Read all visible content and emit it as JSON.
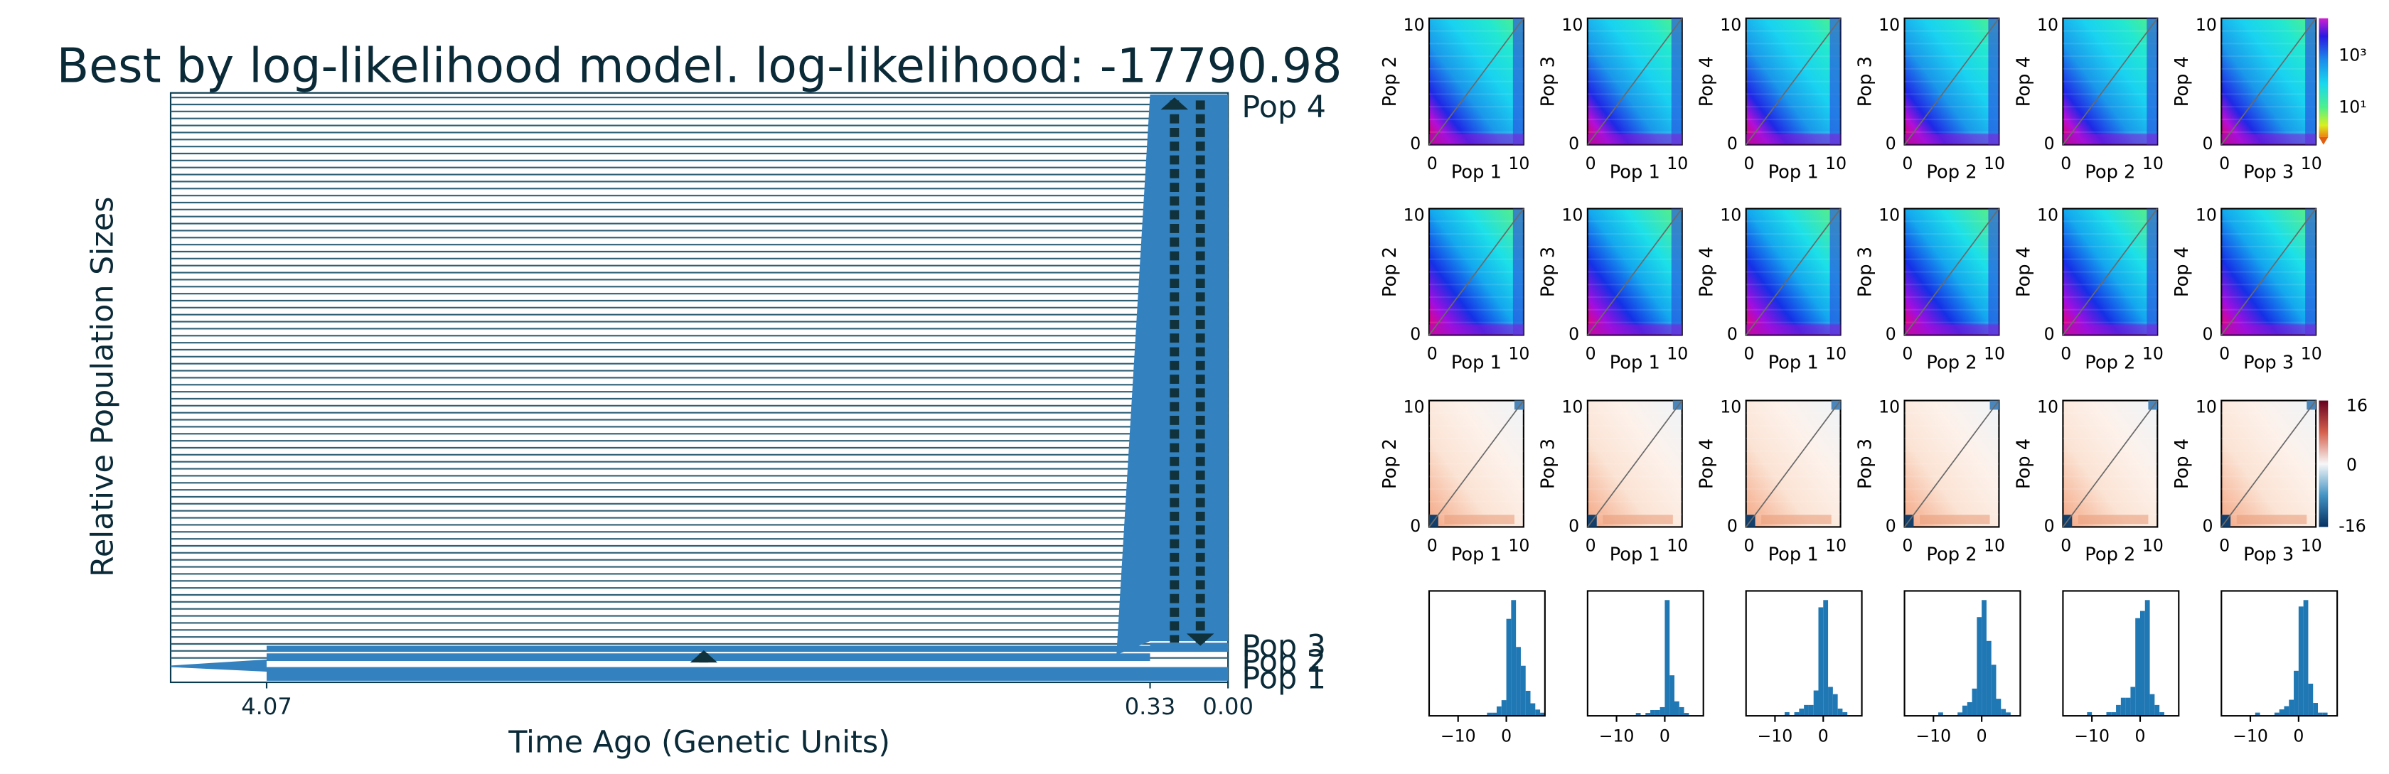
{
  "chart_data": [
    {
      "type": "area",
      "kind": "demographic-model",
      "title": "Best by log-likelihood model. log-likelihood: -17790.98",
      "xlabel": "Time Ago (Genetic Units)",
      "ylabel": "Relative Population Sizes",
      "x_ticks": [
        "4.07",
        "0.33",
        "0.00"
      ],
      "events": [
        4.07,
        0.33,
        0.0
      ],
      "populations": [
        "Pop 1",
        "Pop 2",
        "Pop 3",
        "Pop 4"
      ],
      "migrations": [
        {
          "from": "Pop 1",
          "to": "Pop 2",
          "time": [
            4.07,
            0.33
          ]
        },
        {
          "from": "Pop 3",
          "to": "Pop 4",
          "time": [
            0.33,
            0.0
          ]
        },
        {
          "from": "Pop 4",
          "to": "Pop 3",
          "time": [
            0.33,
            0.0
          ]
        }
      ],
      "colors": {
        "text": "#0b2a38",
        "fill": "#3381bf",
        "outline": "#0b3a4e",
        "arrow": "#10323c"
      }
    },
    {
      "type": "heatmap",
      "kind": "sfs-grid",
      "rows": [
        "data",
        "model",
        "residuals"
      ],
      "panels": [
        {
          "x": "Pop 1",
          "y": "Pop 2"
        },
        {
          "x": "Pop 1",
          "y": "Pop 3"
        },
        {
          "x": "Pop 1",
          "y": "Pop 4"
        },
        {
          "x": "Pop 2",
          "y": "Pop 3"
        },
        {
          "x": "Pop 2",
          "y": "Pop 4"
        },
        {
          "x": "Pop 3",
          "y": "Pop 4"
        }
      ],
      "axis_ticks": [
        "0",
        "10"
      ],
      "colorbar_sfs": [
        "10³",
        "10¹"
      ],
      "colorbar_resid": [
        "16",
        "0",
        "-16"
      ],
      "log_scale": true,
      "colors": {
        "resid_pos": "#c13d2e",
        "resid_neg": "#123f6c"
      }
    },
    {
      "type": "bar",
      "kind": "residual-histograms",
      "x_ticks": [
        [
          "−10",
          "0"
        ],
        [
          "−10",
          "0"
        ],
        [
          "−10",
          "0"
        ],
        [
          "−10",
          "0"
        ],
        [
          "−10",
          "0"
        ],
        [
          "−10",
          "0"
        ]
      ],
      "xlim": [
        -16,
        8
      ],
      "bin_width": 1,
      "counts": [
        [
          0,
          0,
          0,
          0,
          0,
          0,
          0,
          0,
          0,
          0,
          0,
          0,
          1,
          1,
          3,
          5,
          31,
          37,
          22,
          16,
          8,
          4,
          2,
          1
        ],
        [
          0,
          0,
          0,
          0,
          0,
          0,
          0,
          0,
          0,
          0,
          1,
          0,
          1,
          2,
          2,
          3,
          40,
          14,
          5,
          3,
          1,
          0,
          0,
          0
        ],
        [
          0,
          0,
          0,
          0,
          0,
          0,
          0,
          0,
          1,
          0,
          1,
          2,
          3,
          3,
          7,
          30,
          32,
          8,
          6,
          2,
          1,
          0,
          0,
          0
        ],
        [
          0,
          0,
          0,
          0,
          0,
          0,
          0,
          1,
          0,
          0,
          0,
          1,
          3,
          4,
          8,
          29,
          34,
          22,
          15,
          5,
          2,
          1,
          0,
          0
        ],
        [
          0,
          0,
          0,
          0,
          0,
          1,
          0,
          0,
          0,
          1,
          1,
          3,
          5,
          5,
          8,
          27,
          29,
          32,
          6,
          3,
          1,
          0,
          0,
          0
        ],
        [
          0,
          0,
          0,
          0,
          0,
          0,
          0,
          1,
          0,
          0,
          0,
          1,
          2,
          3,
          5,
          14,
          34,
          36,
          10,
          4,
          1,
          1,
          0,
          0
        ]
      ],
      "colors": {
        "bar": "#1f77b4"
      }
    }
  ]
}
